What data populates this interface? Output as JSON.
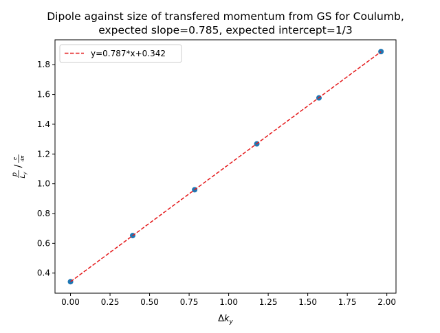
{
  "chart_data": {
    "type": "scatter",
    "title": [
      "Dipole against size of transfered momentum from GS for Coulumb,",
      "expected slope=0.785, expected intercept=1/3"
    ],
    "xlabel": {
      "prefix": "Δ",
      "var": "k",
      "sub": "y"
    },
    "ylabel": {
      "outer_num": "p",
      "outer_den": "L",
      "outer_den_sub": "y",
      "inner_num": "e",
      "inner_den": "4π"
    },
    "xlim": [
      -0.098,
      2.058
    ],
    "ylim": [
      0.265,
      1.967
    ],
    "xticks": [
      0.0,
      0.25,
      0.5,
      0.75,
      1.0,
      1.25,
      1.5,
      1.75,
      2.0
    ],
    "xtick_labels": [
      "0.00",
      "0.25",
      "0.50",
      "0.75",
      "1.00",
      "1.25",
      "1.50",
      "1.75",
      "2.00"
    ],
    "yticks": [
      0.4,
      0.6,
      0.8,
      1.0,
      1.2,
      1.4,
      1.6,
      1.8
    ],
    "ytick_labels": [
      "0.4",
      "0.6",
      "0.8",
      "1.0",
      "1.2",
      "1.4",
      "1.6",
      "1.8"
    ],
    "grid": false,
    "legend_position": "top-left",
    "series": [
      {
        "kind": "scatter",
        "color": "#1f77b4",
        "x": [
          0.0,
          0.393,
          0.785,
          1.178,
          1.571,
          1.963
        ],
        "y": [
          0.342,
          0.652,
          0.96,
          1.268,
          1.577,
          1.888
        ]
      },
      {
        "kind": "line",
        "name": "y=0.787*x+0.342",
        "color": "#e41a1c",
        "linestyle": "dashed",
        "x": [
          0.0,
          1.963
        ],
        "y": [
          0.342,
          1.887
        ]
      }
    ]
  }
}
